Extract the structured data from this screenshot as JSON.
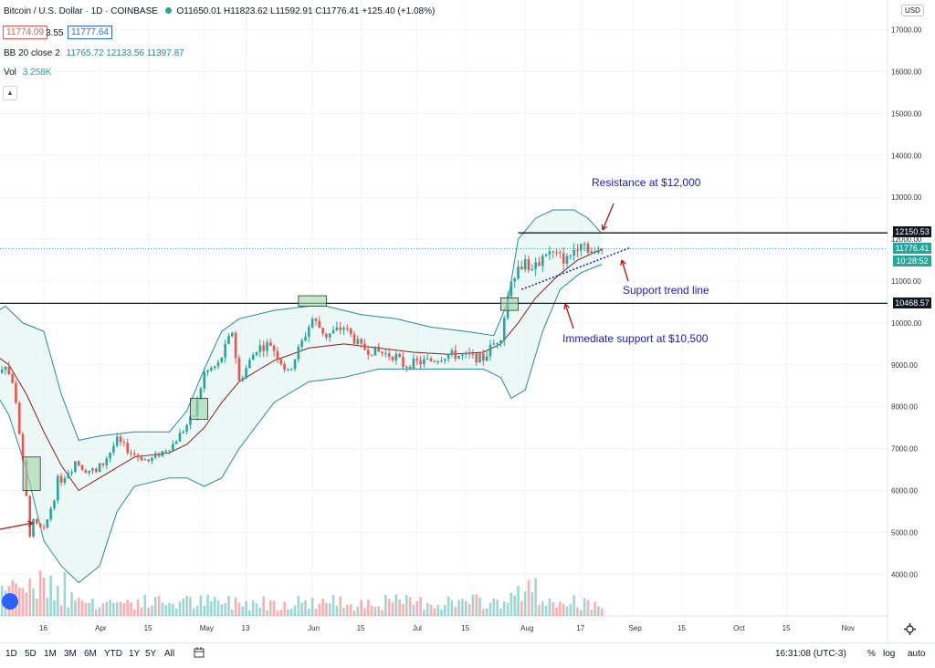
{
  "header": {
    "symbol_title": "Bitcoin / U.S. Dollar · 1D · COINBASE",
    "ohlc": "O11650.01 H11823.62 L11592.91 C11776.41 +125.40 (+1.08%)",
    "bid": "11774.09",
    "spread": "3.55",
    "ask": "11777.64",
    "bb_label": "BB 20 close 2",
    "bb_values": "11765.72 12133.56 11397.87",
    "vol_label": "Vol",
    "vol_value": "3.258K",
    "currency": "USD"
  },
  "price_labels": {
    "resistance": "12150.53",
    "last": "11776.41",
    "countdown": "10:28:52",
    "support": "10468.57"
  },
  "annotations": {
    "resistance": "Resistance at $12,000",
    "trend": "Support trend line",
    "support": "Immediate support at $10,500"
  },
  "bottom_bar": {
    "timeframes": [
      "1D",
      "5D",
      "1M",
      "3M",
      "6M",
      "YTD",
      "1Y",
      "5Y",
      "All"
    ],
    "time": "16:31:08 (UTC-3)",
    "pct": "%",
    "log": "log",
    "auto": "auto"
  },
  "colors": {
    "up": "#26a69a",
    "down": "#ef5350",
    "band": "#2a8a8a",
    "basis": "#8b1a1a",
    "annotation": "#1a1acc"
  },
  "chart_data": {
    "type": "candlestick",
    "title": "Bitcoin / U.S. Dollar · 1D · COINBASE",
    "x_ticks": [
      "16",
      "Apr",
      "15",
      "May",
      "13",
      "Jun",
      "15",
      "Jul",
      "15",
      "Aug",
      "17",
      "Sep",
      "15",
      "Oct",
      "15",
      "Nov"
    ],
    "y_ticks": [
      4000,
      5000,
      6000,
      7000,
      8000,
      9000,
      10000,
      11000,
      12000,
      13000,
      14000,
      15000,
      16000,
      17000
    ],
    "ylim": [
      3000,
      17300
    ],
    "horizontal_levels": [
      12150.53,
      10468.57
    ],
    "last_price": 11776.41,
    "support_trend": {
      "from": [
        "2020-07-31",
        10800
      ],
      "to": [
        "2020-08-23",
        11700
      ]
    },
    "price_path": [
      [
        "2020-03-01",
        8700
      ],
      [
        "2020-03-05",
        9100
      ],
      [
        "2020-03-08",
        8200
      ],
      [
        "2020-03-12",
        5000
      ],
      [
        "2020-03-13",
        5200
      ],
      [
        "2020-03-16",
        5000
      ],
      [
        "2020-03-20",
        6200
      ],
      [
        "2020-03-25",
        6700
      ],
      [
        "2020-03-31",
        6400
      ],
      [
        "2020-04-06",
        7200
      ],
      [
        "2020-04-10",
        6900
      ],
      [
        "2020-04-15",
        6700
      ],
      [
        "2020-04-22",
        7100
      ],
      [
        "2020-04-28",
        7800
      ],
      [
        "2020-05-01",
        8800
      ],
      [
        "2020-05-05",
        9000
      ],
      [
        "2020-05-09",
        9800
      ],
      [
        "2020-05-11",
        8600
      ],
      [
        "2020-05-16",
        9400
      ],
      [
        "2020-05-20",
        9500
      ],
      [
        "2020-05-25",
        8800
      ],
      [
        "2020-06-01",
        10100
      ],
      [
        "2020-06-05",
        9700
      ],
      [
        "2020-06-10",
        9900
      ],
      [
        "2020-06-15",
        9400
      ],
      [
        "2020-06-20",
        9300
      ],
      [
        "2020-06-25",
        9200
      ],
      [
        "2020-06-27",
        9000
      ],
      [
        "2020-07-05",
        9100
      ],
      [
        "2020-07-10",
        9250
      ],
      [
        "2020-07-15",
        9200
      ],
      [
        "2020-07-20",
        9150
      ],
      [
        "2020-07-22",
        9400
      ],
      [
        "2020-07-25",
        9700
      ],
      [
        "2020-07-28",
        11100
      ],
      [
        "2020-08-01",
        11500
      ],
      [
        "2020-08-03",
        11200
      ],
      [
        "2020-08-07",
        11700
      ],
      [
        "2020-08-10",
        11600
      ],
      [
        "2020-08-13",
        11500
      ],
      [
        "2020-08-17",
        12000
      ],
      [
        "2020-08-19",
        11800
      ],
      [
        "2020-08-21",
        11600
      ],
      [
        "2020-08-23",
        11776
      ]
    ],
    "bb_upper": [
      [
        "2020-03-01",
        10200
      ],
      [
        "2020-03-05",
        10400
      ],
      [
        "2020-03-10",
        10000
      ],
      [
        "2020-03-16",
        9800
      ],
      [
        "2020-03-21",
        8300
      ],
      [
        "2020-03-26",
        7200
      ],
      [
        "2020-04-01",
        7300
      ],
      [
        "2020-04-11",
        7400
      ],
      [
        "2020-04-21",
        7400
      ],
      [
        "2020-04-26",
        7900
      ],
      [
        "2020-05-01",
        8900
      ],
      [
        "2020-05-06",
        9800
      ],
      [
        "2020-05-11",
        10100
      ],
      [
        "2020-05-21",
        10300
      ],
      [
        "2020-05-31",
        10400
      ],
      [
        "2020-06-05",
        10400
      ],
      [
        "2020-06-15",
        10200
      ],
      [
        "2020-06-25",
        10100
      ],
      [
        "2020-07-05",
        9900
      ],
      [
        "2020-07-15",
        9800
      ],
      [
        "2020-07-23",
        9700
      ],
      [
        "2020-07-27",
        10500
      ],
      [
        "2020-07-30",
        12000
      ],
      [
        "2020-08-04",
        12500
      ],
      [
        "2020-08-09",
        12700
      ],
      [
        "2020-08-15",
        12700
      ],
      [
        "2020-08-19",
        12500
      ],
      [
        "2020-08-23",
        12130
      ]
    ],
    "bb_lower": [
      [
        "2020-03-01",
        8500
      ],
      [
        "2020-03-06",
        7800
      ],
      [
        "2020-03-11",
        6500
      ],
      [
        "2020-03-16",
        4800
      ],
      [
        "2020-03-21",
        4200
      ],
      [
        "2020-03-26",
        3800
      ],
      [
        "2020-04-01",
        4200
      ],
      [
        "2020-04-06",
        5500
      ],
      [
        "2020-04-11",
        6100
      ],
      [
        "2020-04-21",
        6300
      ],
      [
        "2020-04-26",
        6300
      ],
      [
        "2020-05-01",
        6100
      ],
      [
        "2020-05-06",
        6300
      ],
      [
        "2020-05-11",
        7000
      ],
      [
        "2020-05-21",
        8100
      ],
      [
        "2020-05-31",
        8600
      ],
      [
        "2020-06-10",
        8700
      ],
      [
        "2020-06-20",
        8900
      ],
      [
        "2020-06-30",
        8900
      ],
      [
        "2020-07-10",
        8900
      ],
      [
        "2020-07-20",
        8900
      ],
      [
        "2020-07-25",
        8700
      ],
      [
        "2020-07-28",
        8200
      ],
      [
        "2020-08-01",
        8400
      ],
      [
        "2020-08-06",
        9800
      ],
      [
        "2020-08-11",
        10800
      ],
      [
        "2020-08-17",
        11200
      ],
      [
        "2020-08-23",
        11400
      ]
    ],
    "bb_basis": [
      [
        "2020-03-01",
        9300
      ],
      [
        "2020-03-06",
        9000
      ],
      [
        "2020-03-11",
        8300
      ],
      [
        "2020-03-16",
        7400
      ],
      [
        "2020-03-21",
        6600
      ],
      [
        "2020-03-26",
        6000
      ],
      [
        "2020-04-01",
        6300
      ],
      [
        "2020-04-11",
        6800
      ],
      [
        "2020-04-21",
        6900
      ],
      [
        "2020-04-26",
        7100
      ],
      [
        "2020-05-01",
        7500
      ],
      [
        "2020-05-06",
        8100
      ],
      [
        "2020-05-11",
        8600
      ],
      [
        "2020-05-21",
        9100
      ],
      [
        "2020-05-31",
        9400
      ],
      [
        "2020-06-10",
        9500
      ],
      [
        "2020-06-20",
        9400
      ],
      [
        "2020-06-30",
        9300
      ],
      [
        "2020-07-10",
        9250
      ],
      [
        "2020-07-20",
        9300
      ],
      [
        "2020-07-25",
        9500
      ],
      [
        "2020-07-30",
        10000
      ],
      [
        "2020-08-04",
        10600
      ],
      [
        "2020-08-10",
        11100
      ],
      [
        "2020-08-16",
        11500
      ],
      [
        "2020-08-23",
        11765
      ]
    ]
  }
}
